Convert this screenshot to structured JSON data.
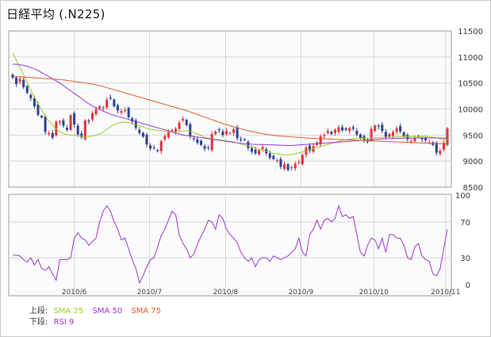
{
  "title": "日経平均 (.N225)",
  "legend": {
    "upper_label": "上段:",
    "lower_label": "下段:",
    "sma25": "SMA 25",
    "sma50": "SMA 50",
    "sma75": "SMA 75",
    "rsi": "RSI 9"
  },
  "colors": {
    "up": "#e0303a",
    "down": "#2a3e8c",
    "sma25": "#9ccc22",
    "sma50": "#9933cc",
    "sma75": "#e05a2a",
    "rsi": "#9933cc",
    "grid": "#d6d6d6",
    "panel_bg": "#fafbfc"
  },
  "chart_data": [
    {
      "type": "candlestick",
      "panel": "upper",
      "ylim": [
        8500,
        11500
      ],
      "yticks": [
        8500,
        9000,
        9500,
        10000,
        10500,
        11000,
        11500
      ],
      "xlabels": [
        "2010/6",
        "2010/7",
        "2010/8",
        "2010/9",
        "2010/10",
        "2010/11"
      ],
      "close": [
        10600,
        10480,
        10580,
        10420,
        10310,
        10210,
        10050,
        9890,
        9840,
        9560,
        9540,
        9450,
        9760,
        9760,
        9680,
        9600,
        9880,
        9700,
        9510,
        9460,
        9780,
        9760,
        9920,
        9990,
        10050,
        10030,
        10180,
        10200,
        10050,
        9970,
        9960,
        9980,
        9840,
        9760,
        9640,
        9540,
        9470,
        9320,
        9240,
        9250,
        9190,
        9380,
        9480,
        9560,
        9600,
        9620,
        9740,
        9810,
        9690,
        9480,
        9420,
        9350,
        9310,
        9240,
        9250,
        9520,
        9570,
        9590,
        9500,
        9580,
        9540,
        9610,
        9440,
        9400,
        9410,
        9250,
        9180,
        9150,
        9210,
        9270,
        9150,
        9060,
        9040,
        9020,
        8890,
        8940,
        8830,
        8880,
        8950,
        8980,
        9120,
        9260,
        9200,
        9290,
        9360,
        9480,
        9500,
        9580,
        9520,
        9600,
        9650,
        9590,
        9600,
        9630,
        9620,
        9510,
        9440,
        9410,
        9380,
        9620,
        9680,
        9660,
        9580,
        9450,
        9520,
        9560,
        9630,
        9570,
        9480,
        9420,
        9380,
        9440,
        9470,
        9420,
        9400,
        9360,
        9310,
        9160,
        9200,
        9350,
        9630
      ],
      "series": [
        {
          "name": "SMA 25",
          "values": [
            11080,
            10940,
            10800,
            10660,
            10510,
            10370,
            10230,
            10100,
            9980,
            9870,
            9770,
            9690,
            9620,
            9570,
            9530,
            9510,
            9500,
            9495,
            9490,
            9480,
            9470,
            9470,
            9480,
            9500,
            9520,
            9560,
            9610,
            9660,
            9700,
            9730,
            9745,
            9750,
            9740,
            9720,
            9700,
            9680,
            9660,
            9630,
            9610,
            9600,
            9590,
            9580,
            9570,
            9560,
            9560,
            9560,
            9570,
            9580,
            9580,
            9570,
            9550,
            9520,
            9490,
            9460,
            9440,
            9430,
            9420,
            9410,
            9400,
            9390,
            9380,
            9370,
            9350,
            9330,
            9310,
            9290,
            9270,
            9250,
            9230,
            9210,
            9190,
            9170,
            9150,
            9140,
            9130,
            9120,
            9120,
            9130,
            9140,
            9160,
            9180,
            9200,
            9220,
            9240,
            9260,
            9280,
            9300,
            9320,
            9340,
            9360,
            9380,
            9400,
            9410,
            9420,
            9430,
            9440,
            9440,
            9440,
            9440,
            9440,
            9450,
            9450,
            9455,
            9460,
            9460,
            9460,
            9465,
            9470,
            9470,
            9470,
            9470,
            9470,
            9470,
            9470,
            9470,
            9465,
            9460,
            9450,
            9430,
            9420,
            9420
          ]
        },
        {
          "name": "SMA 50",
          "values": [
            10860,
            10860,
            10850,
            10840,
            10820,
            10800,
            10770,
            10740,
            10700,
            10660,
            10620,
            10580,
            10540,
            10500,
            10450,
            10400,
            10350,
            10300,
            10250,
            10200,
            10150,
            10100,
            10060,
            10020,
            9990,
            9960,
            9930,
            9900,
            9880,
            9860,
            9840,
            9820,
            9800,
            9780,
            9760,
            9740,
            9720,
            9700,
            9680,
            9660,
            9640,
            9620,
            9600,
            9580,
            9560,
            9540,
            9520,
            9500,
            9490,
            9480,
            9470,
            9460,
            9450,
            9440,
            9430,
            9420,
            9410,
            9400,
            9390,
            9380,
            9370,
            9360,
            9350,
            9340,
            9335,
            9330,
            9325,
            9320,
            9318,
            9316,
            9314,
            9312,
            9310,
            9308,
            9305,
            9303,
            9300,
            9300,
            9305,
            9310,
            9315,
            9320,
            9325,
            9330,
            9335,
            9340,
            9345,
            9350,
            9355,
            9360,
            9365,
            9370,
            9375,
            9380,
            9385,
            9390,
            9395,
            9400,
            9405,
            9410,
            9415,
            9420,
            9425,
            9430,
            9432,
            9434,
            9436,
            9438,
            9440,
            9441,
            9442,
            9443,
            9444,
            9445,
            9445,
            9445,
            9445,
            9444,
            9443,
            9442,
            9442
          ]
        },
        {
          "name": "SMA 75",
          "values": [
            10620,
            10620,
            10620,
            10615,
            10610,
            10605,
            10600,
            10595,
            10590,
            10585,
            10580,
            10575,
            10570,
            10565,
            10560,
            10550,
            10540,
            10530,
            10520,
            10510,
            10500,
            10490,
            10480,
            10465,
            10450,
            10430,
            10410,
            10390,
            10370,
            10350,
            10330,
            10310,
            10290,
            10270,
            10250,
            10230,
            10210,
            10190,
            10170,
            10150,
            10130,
            10110,
            10090,
            10070,
            10050,
            10030,
            10010,
            9990,
            9970,
            9945,
            9920,
            9895,
            9870,
            9845,
            9820,
            9795,
            9770,
            9745,
            9720,
            9700,
            9680,
            9660,
            9640,
            9620,
            9600,
            9585,
            9570,
            9555,
            9540,
            9525,
            9515,
            9505,
            9495,
            9485,
            9480,
            9475,
            9470,
            9465,
            9460,
            9455,
            9450,
            9445,
            9440,
            9437,
            9434,
            9431,
            9428,
            9425,
            9422,
            9419,
            9416,
            9413,
            9410,
            9407,
            9404,
            9401,
            9398,
            9395,
            9392,
            9389,
            9386,
            9383,
            9380,
            9377,
            9374,
            9371,
            9368,
            9365,
            9362,
            9359,
            9356,
            9353,
            9350,
            9348,
            9346,
            9344,
            9342,
            9340,
            9338,
            9336,
            9334
          ]
        }
      ]
    },
    {
      "type": "line",
      "panel": "lower",
      "ylim": [
        0,
        100
      ],
      "yticks": [
        0,
        30,
        70,
        100
      ],
      "series": [
        {
          "name": "RSI 9",
          "values": [
            33,
            33,
            32,
            28,
            25,
            30,
            22,
            28,
            18,
            16,
            20,
            12,
            5,
            28,
            28,
            28,
            30,
            52,
            58,
            52,
            50,
            44,
            48,
            52,
            70,
            82,
            88,
            82,
            70,
            62,
            50,
            52,
            40,
            28,
            18,
            2,
            10,
            20,
            28,
            30,
            42,
            55,
            62,
            72,
            82,
            78,
            55,
            46,
            40,
            30,
            34,
            45,
            54,
            62,
            72,
            70,
            62,
            78,
            74,
            62,
            56,
            52,
            47,
            36,
            30,
            26,
            30,
            20,
            28,
            30,
            30,
            26,
            32,
            30,
            28,
            30,
            32,
            36,
            40,
            52,
            36,
            32,
            56,
            62,
            72,
            62,
            72,
            74,
            70,
            74,
            88,
            76,
            78,
            74,
            76,
            56,
            36,
            32,
            44,
            52,
            50,
            40,
            52,
            36,
            56,
            56,
            52,
            52,
            44,
            30,
            28,
            42,
            46,
            32,
            28,
            26,
            12,
            10,
            18,
            40,
            62
          ]
        }
      ]
    }
  ]
}
